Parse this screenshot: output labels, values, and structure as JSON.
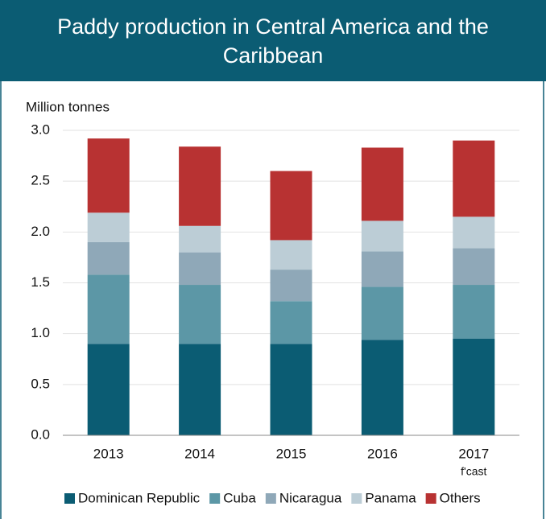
{
  "chart_data": {
    "type": "stacked_bar",
    "title": "Paddy production in Central America and the Caribbean",
    "y_label": "Million tonnes",
    "categories": [
      "2013",
      "2014",
      "2015",
      "2016",
      "2017"
    ],
    "annotations": [
      "f'cast"
    ],
    "series": [
      {
        "name": "Dominican Republic",
        "color": "#0b5c73",
        "values": [
          0.9,
          0.9,
          0.9,
          0.94,
          0.95
        ]
      },
      {
        "name": "Cuba",
        "color": "#5c97a6",
        "values": [
          0.68,
          0.58,
          0.42,
          0.52,
          0.53
        ]
      },
      {
        "name": "Nicaragua",
        "color": "#8fa8b8",
        "values": [
          0.32,
          0.32,
          0.31,
          0.35,
          0.36
        ]
      },
      {
        "name": "Panama",
        "color": "#bccdd6",
        "values": [
          0.29,
          0.26,
          0.29,
          0.3,
          0.31
        ]
      },
      {
        "name": "Others",
        "color": "#b83232",
        "values": [
          0.73,
          0.78,
          0.68,
          0.72,
          0.75
        ]
      }
    ],
    "ylim": [
      0,
      3
    ],
    "yticks": [
      {
        "value": 0,
        "label": "0.0"
      },
      {
        "value": 0.5,
        "label": "0.5"
      },
      {
        "value": 1,
        "label": "1.0"
      },
      {
        "value": 1.5,
        "label": "1.5"
      },
      {
        "value": 2,
        "label": "2.0"
      },
      {
        "value": 2.5,
        "label": "2.5"
      },
      {
        "value": 3,
        "label": "3.0"
      }
    ],
    "grid": true
  }
}
